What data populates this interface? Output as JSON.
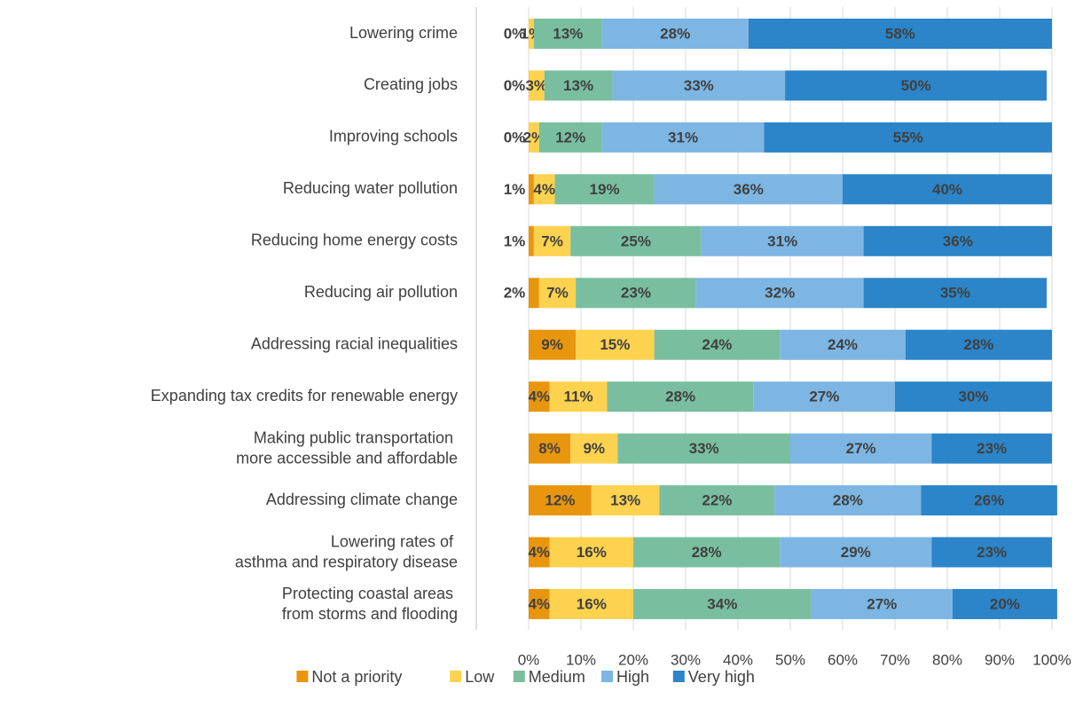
{
  "chart_data": {
    "type": "stacked_barh",
    "categories": [
      "Lowering crime",
      "Creating jobs",
      "Improving schools",
      "Reducing water pollution",
      "Reducing home energy costs",
      "Reducing air pollution",
      "Addressing racial inequalities",
      "Expanding tax credits for renewable energy",
      "Making public transportation more accessible and affordable",
      "Addressing climate change",
      "Lowering rates of asthma and respiratory disease",
      "Protecting coastal areas from storms and flooding"
    ],
    "series": [
      {
        "name": "Not a priority",
        "color": "#e8960e",
        "values": [
          0,
          0,
          0,
          1,
          1,
          2,
          9,
          4,
          8,
          12,
          4,
          4
        ],
        "value_labels": [
          "0%",
          "0%",
          "0%",
          "1%",
          "1%",
          "2%",
          "9%",
          "4%",
          "8%",
          "12%",
          "4%",
          "4%"
        ]
      },
      {
        "name": "Low",
        "color": "#fdd24f",
        "values": [
          1,
          3,
          2,
          4,
          7,
          7,
          15,
          11,
          9,
          13,
          16,
          16
        ],
        "value_labels": [
          "1%",
          "3%",
          "2%",
          "4%",
          "7%",
          "7%",
          "15%",
          "11%",
          "9%",
          "13%",
          "16%",
          "16%"
        ]
      },
      {
        "name": "Medium",
        "color": "#79bf9f",
        "values": [
          13,
          13,
          12,
          19,
          25,
          23,
          24,
          28,
          33,
          22,
          28,
          34
        ],
        "value_labels": [
          "13%",
          "13%",
          "12%",
          "19%",
          "25%",
          "23%",
          "24%",
          "28%",
          "33%",
          "22%",
          "28%",
          "34%"
        ]
      },
      {
        "name": "High",
        "color": "#7db6e3",
        "values": [
          28,
          33,
          31,
          36,
          31,
          32,
          24,
          27,
          27,
          28,
          29,
          27
        ],
        "value_labels": [
          "28%",
          "33%",
          "31%",
          "36%",
          "31%",
          "32%",
          "24%",
          "27%",
          "27%",
          "28%",
          "29%",
          "27%"
        ]
      },
      {
        "name": "Very high",
        "color": "#2b85c8",
        "values": [
          58,
          50,
          55,
          40,
          36,
          35,
          28,
          30,
          23,
          26,
          23,
          20
        ],
        "value_labels": [
          "58%",
          "50%",
          "55%",
          "40%",
          "36%",
          "35%",
          "28%",
          "30%",
          "23%",
          "26%",
          "23%",
          "20%"
        ]
      }
    ],
    "xlim": [
      -10,
      100
    ],
    "xticks": [
      {
        "value": 0,
        "label": "0%"
      },
      {
        "value": 10,
        "label": "10%"
      },
      {
        "value": 20,
        "label": "20%"
      },
      {
        "value": 30,
        "label": "30%"
      },
      {
        "value": 40,
        "label": "40%"
      },
      {
        "value": 50,
        "label": "50%"
      },
      {
        "value": 60,
        "label": "60%"
      },
      {
        "value": 70,
        "label": "70%"
      },
      {
        "value": 80,
        "label": "80%"
      },
      {
        "value": 90,
        "label": "90%"
      },
      {
        "value": 100,
        "label": "100%"
      }
    ],
    "grid": true,
    "legend": "bottom"
  }
}
